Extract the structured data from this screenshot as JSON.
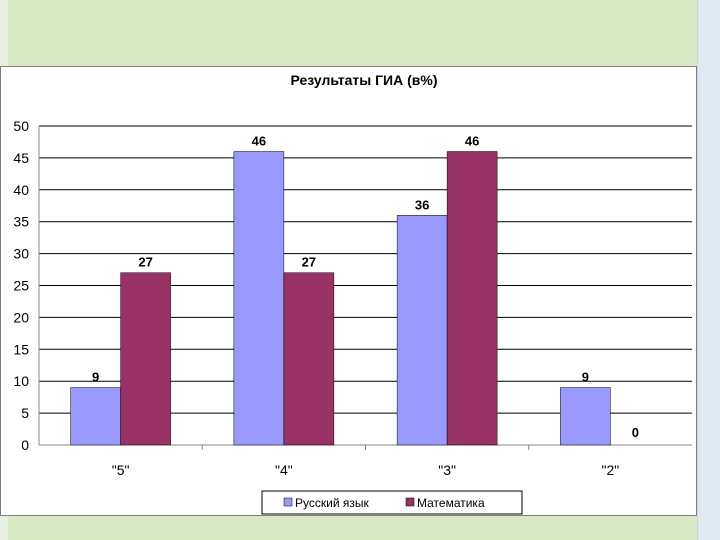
{
  "chart_data": {
    "type": "bar",
    "title": "Результаты ГИА (в%)",
    "xlabel": "",
    "ylabel": "",
    "categories": [
      "\"5\"",
      "\"4\"",
      "\"3\"",
      "\"2\""
    ],
    "series": [
      {
        "name": "Русский язык",
        "values": [
          9,
          46,
          36,
          9
        ],
        "color": "#9999ff"
      },
      {
        "name": "Математика",
        "values": [
          27,
          27,
          46,
          0
        ],
        "color": "#993366"
      }
    ],
    "ylim": [
      0,
      50
    ],
    "yticks": [
      0,
      5,
      10,
      15,
      20,
      25,
      30,
      35,
      40,
      45,
      50
    ],
    "grid": true,
    "legend": "bottom"
  }
}
